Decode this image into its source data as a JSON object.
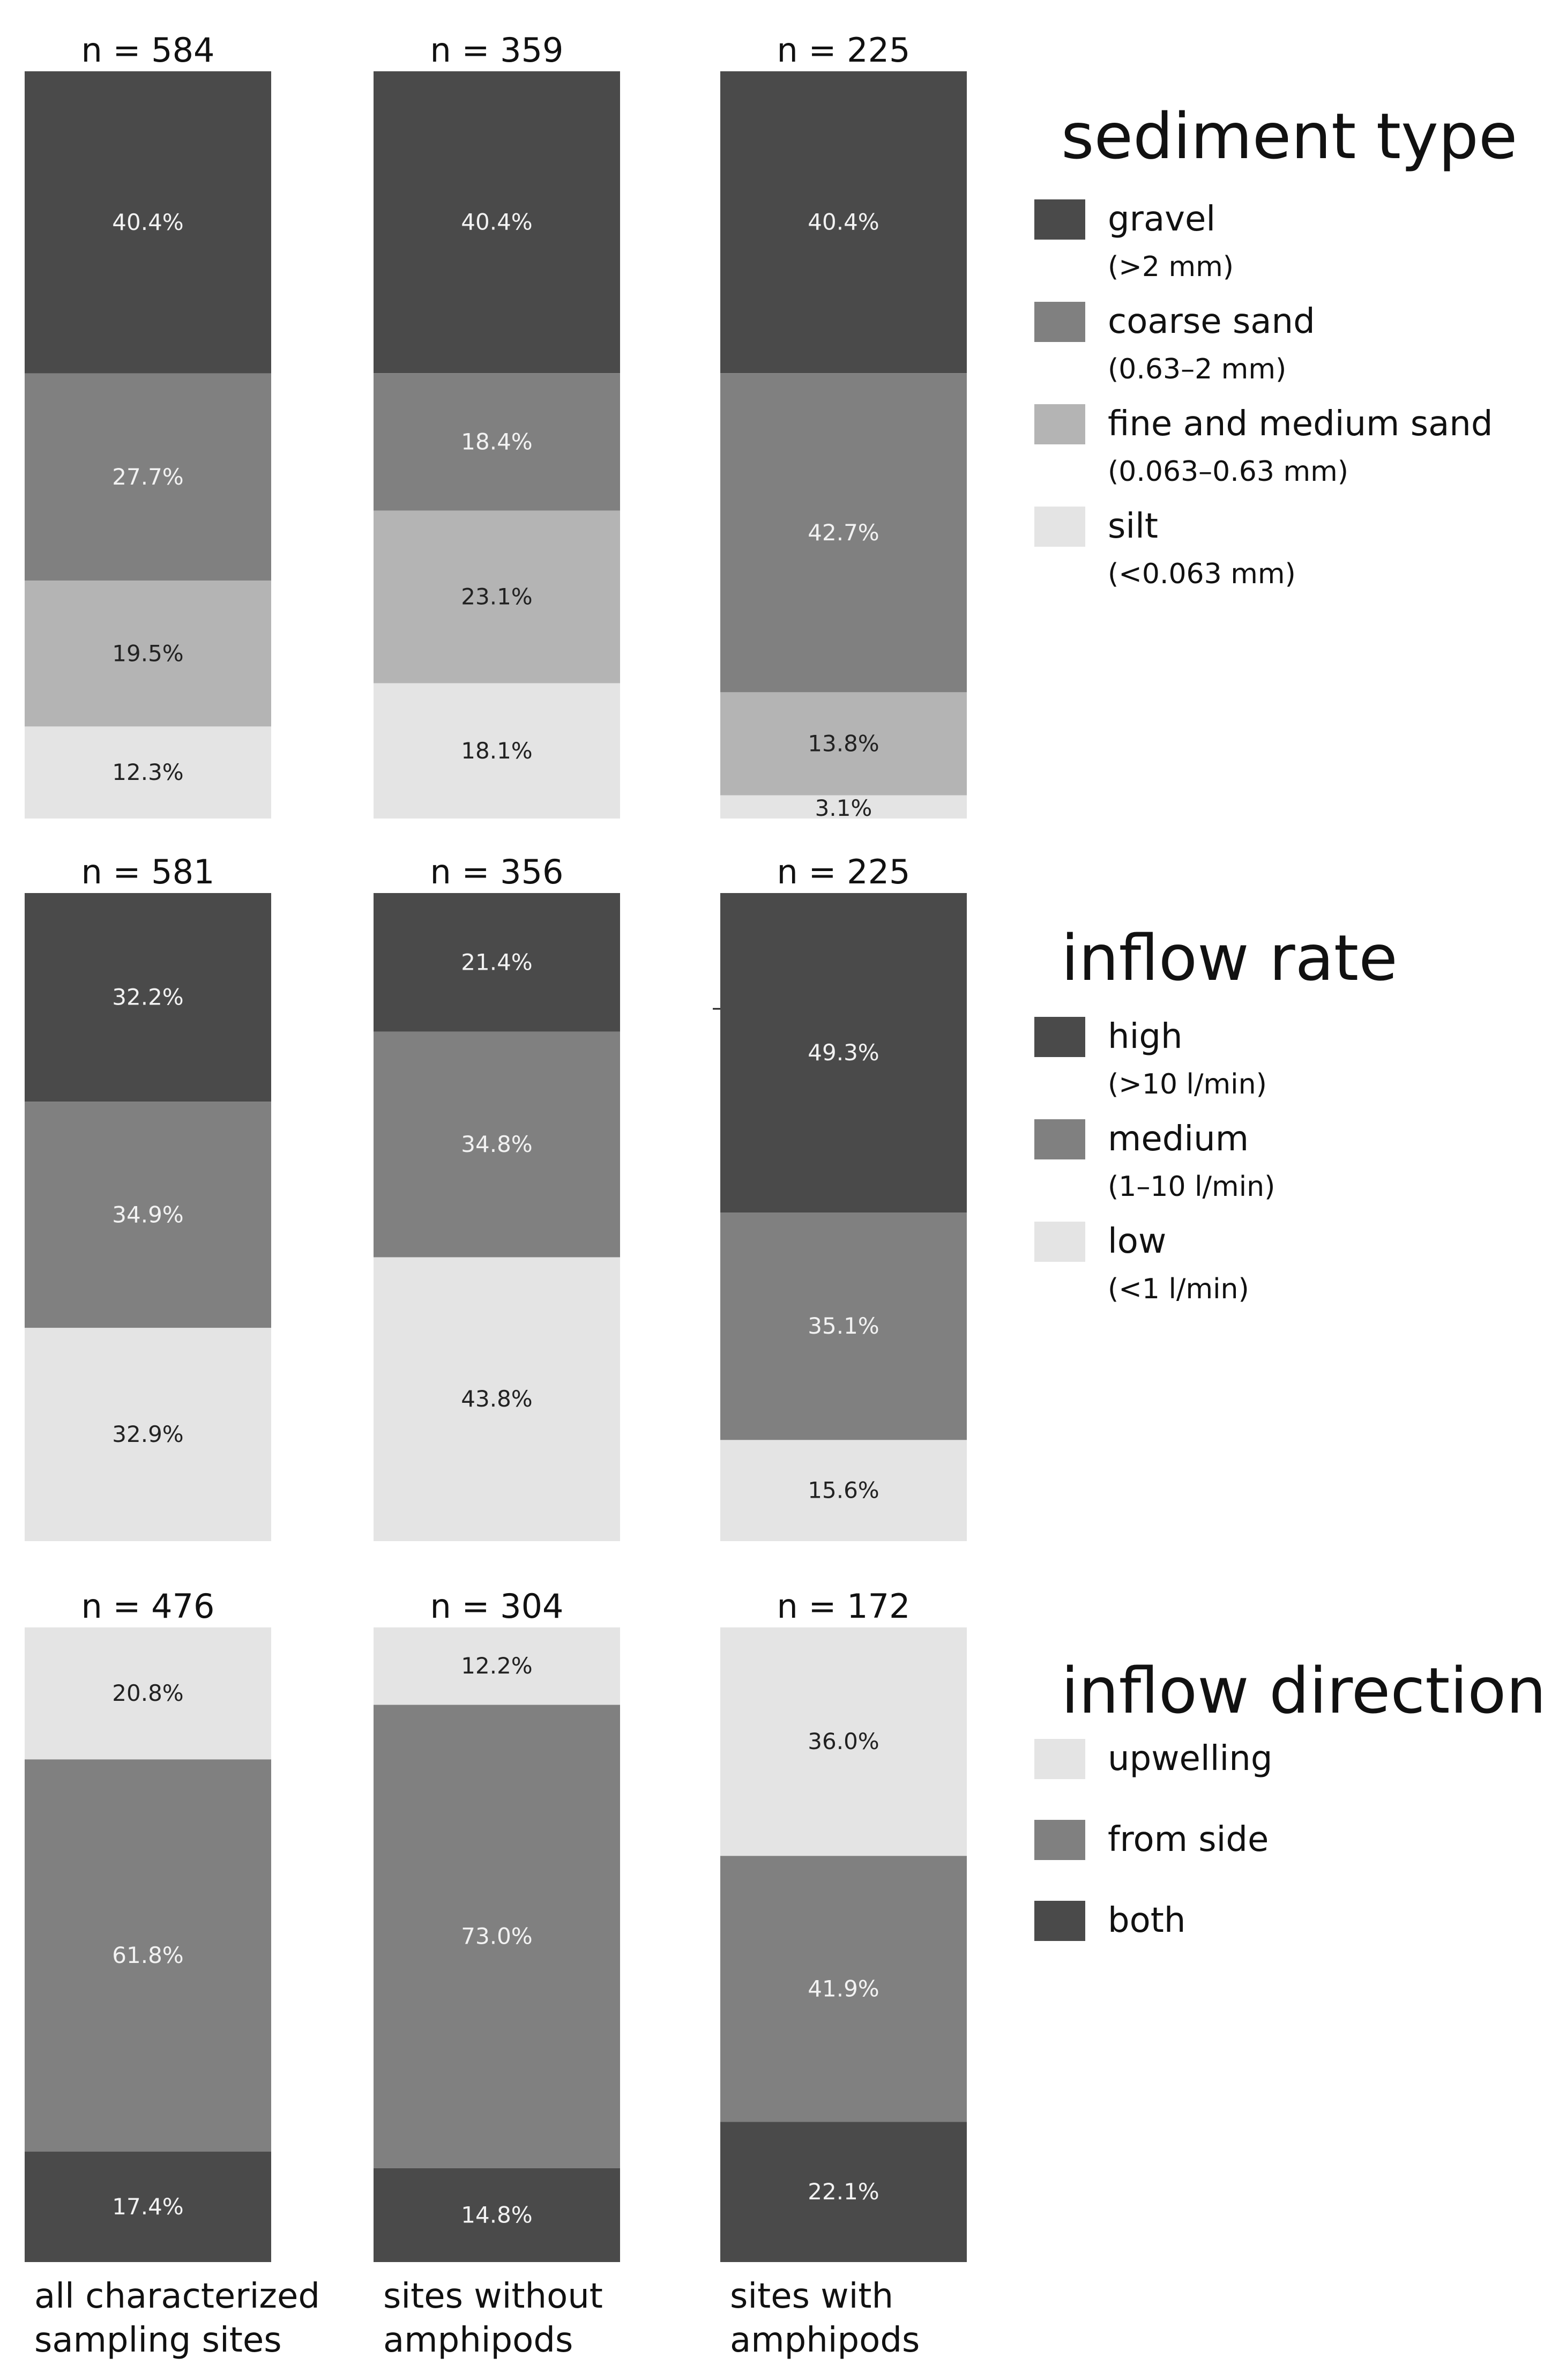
{
  "colors": {
    "dark": "#4a4a4a",
    "medium": "#808080",
    "light": "#b4b4b4",
    "lightest": "#e4e4e4",
    "text_on_dark": "#f2f2f2",
    "text_on_light": "#222222"
  },
  "column_labels": [
    [
      "all characterized",
      "sampling sites"
    ],
    [
      "sites without",
      "amphipods"
    ],
    [
      "sites with",
      "amphipods"
    ]
  ],
  "chart_data": [
    {
      "type": "bar",
      "stacked": true,
      "title": "sediment type",
      "categories": [
        "all characterized sampling sites",
        "sites without amphipods",
        "sites with amphipods"
      ],
      "n_labels": [
        "n = 584",
        "n = 359",
        "n = 225"
      ],
      "series": [
        {
          "name": "gravel",
          "sub": "(>2 mm)",
          "color_key": "dark",
          "values": [
            40.4,
            40.4,
            40.4
          ],
          "labels": [
            "40.4%",
            "40.4%",
            "40.4%"
          ]
        },
        {
          "name": "coarse sand",
          "sub": "(0.63–2 mm)",
          "color_key": "medium",
          "values": [
            27.7,
            18.4,
            42.7
          ],
          "labels": [
            "27.7%",
            "18.4%",
            "42.7%"
          ]
        },
        {
          "name": "fine and medium sand",
          "sub": "(0.063–0.63 mm)",
          "color_key": "light",
          "values": [
            19.5,
            23.1,
            13.8
          ],
          "labels": [
            "19.5%",
            "23.1%",
            "13.8%"
          ]
        },
        {
          "name": "silt",
          "sub": "(<0.063 mm)",
          "color_key": "lightest",
          "values": [
            12.3,
            18.1,
            3.1
          ],
          "labels": [
            "12.3%",
            "18.1%",
            "3.1%"
          ]
        }
      ],
      "legend_order": [
        0,
        1,
        2,
        3
      ]
    },
    {
      "type": "bar",
      "stacked": true,
      "title": "inflow rate",
      "categories": [
        "all characterized sampling sites",
        "sites without amphipods",
        "sites with amphipods"
      ],
      "n_labels": [
        "n = 581",
        "n = 356",
        "n = 225"
      ],
      "series": [
        {
          "name": "high",
          "sub": "(>10 l/min)",
          "color_key": "dark",
          "values": [
            32.2,
            21.4,
            49.3
          ],
          "labels": [
            "32.2%",
            "21.4%",
            "49.3%"
          ]
        },
        {
          "name": "medium",
          "sub": "(1–10 l/min)",
          "color_key": "medium",
          "values": [
            34.9,
            34.8,
            35.1
          ],
          "labels": [
            "34.9%",
            "34.8%",
            "35.1%"
          ]
        },
        {
          "name": "low",
          "sub": "(<1 l/min)",
          "color_key": "lightest",
          "values": [
            32.9,
            43.8,
            15.6
          ],
          "labels": [
            "32.9%",
            "43.8%",
            "15.6%"
          ]
        }
      ],
      "legend_order": [
        0,
        1,
        2
      ]
    },
    {
      "type": "bar",
      "stacked": true,
      "title": "inflow direction",
      "categories": [
        "all characterized sampling sites",
        "sites without amphipods",
        "sites with amphipods"
      ],
      "n_labels": [
        "n = 476",
        "n = 304",
        "n = 172"
      ],
      "series": [
        {
          "name": "upwelling",
          "sub": "",
          "color_key": "lightest",
          "values": [
            20.8,
            12.2,
            36.0
          ],
          "labels": [
            "20.8%",
            "12.2%",
            "36.0%"
          ]
        },
        {
          "name": "from side",
          "sub": "",
          "color_key": "medium",
          "values": [
            61.8,
            73.0,
            41.9
          ],
          "labels": [
            "61.8%",
            "73.0%",
            "41.9%"
          ]
        },
        {
          "name": "both",
          "sub": "",
          "color_key": "dark",
          "values": [
            17.4,
            14.8,
            22.1
          ],
          "labels": [
            "17.4%",
            "14.8%",
            "22.1%"
          ]
        }
      ],
      "legend_order": [
        0,
        1,
        2
      ]
    }
  ]
}
